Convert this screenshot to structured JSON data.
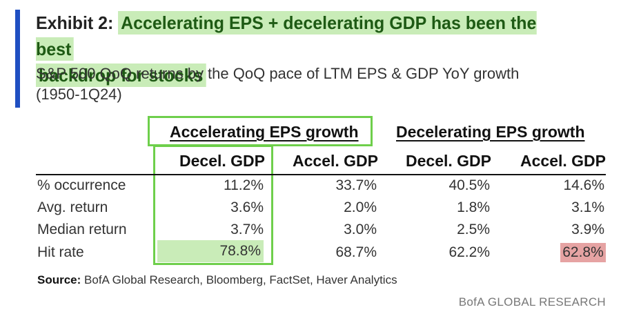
{
  "exhibit": {
    "label": "Exhibit 2:",
    "title_highlight_line1": "Accelerating EPS + decelerating GDP has been the best",
    "title_highlight_line2": "backdrop for stocks",
    "subtitle_line1": "S&P 500 QoQ returns by the QoQ pace of LTM EPS & GDP YoY growth",
    "subtitle_line2": "(1950-1Q24)"
  },
  "table": {
    "group_headers": [
      "Accelerating EPS growth",
      "Decelerating EPS growth"
    ],
    "columns": [
      "Decel. GDP",
      "Accel. GDP",
      "Decel. GDP",
      "Accel. GDP"
    ],
    "rows": [
      {
        "label": "% occurrence",
        "values": [
          "11.2%",
          "33.7%",
          "40.5%",
          "14.6%"
        ]
      },
      {
        "label": "Avg. return",
        "values": [
          "3.6%",
          "2.0%",
          "1.8%",
          "3.1%"
        ]
      },
      {
        "label": "Median return",
        "values": [
          "3.7%",
          "3.0%",
          "2.5%",
          "3.9%"
        ]
      },
      {
        "label": "Hit rate",
        "values": [
          "78.8%",
          "68.7%",
          "62.2%",
          "62.8%"
        ]
      }
    ],
    "highlight_green": "#c9ecb8",
    "highlight_red": "#e6a3a3",
    "box_color": "#6ecf4b"
  },
  "source": {
    "label": "Source:",
    "text": " BofA Global Research, Bloomberg, FactSet, Haver Analytics"
  },
  "brand": "BofA GLOBAL RESEARCH",
  "colors": {
    "accent": "#1f4fc2"
  }
}
